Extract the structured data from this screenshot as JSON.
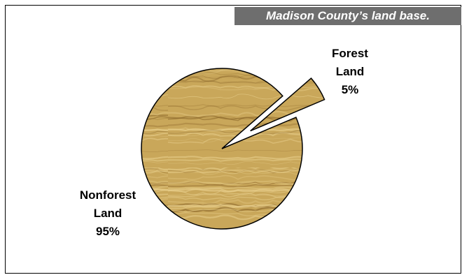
{
  "chart_data": {
    "type": "pie",
    "title": "Madison County’s land base.",
    "slices": [
      {
        "label_line1": "Forest",
        "label_line2": "Land",
        "pct_text": "5%",
        "value": 5
      },
      {
        "label_line1": "Nonforest",
        "label_line2": "Land",
        "pct_text": "95%",
        "value": 95
      }
    ],
    "exploded_slice": "Forest Land",
    "colors": {
      "pie_fill": "#c9a75a",
      "grain_light": "#e8cf8c",
      "grain_dark": "#8f6a2c",
      "outline": "#000000",
      "title_bg": "#6e6e6e",
      "title_text": "#ffffff"
    }
  }
}
